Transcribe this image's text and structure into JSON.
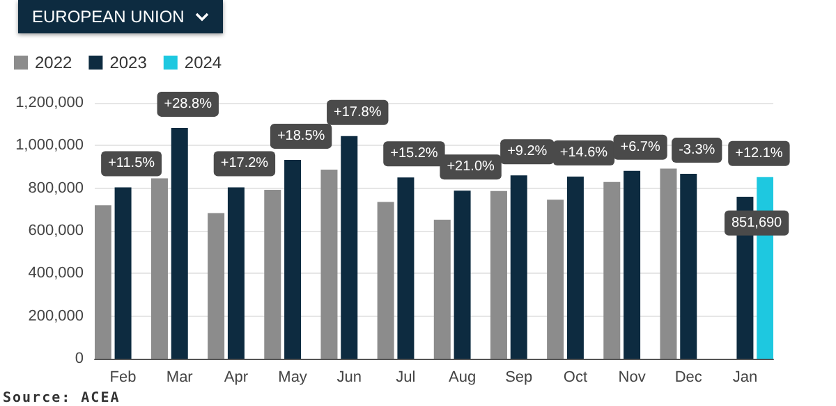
{
  "chart_data": {
    "type": "bar",
    "title": "EUROPEAN UNION",
    "categories": [
      "Feb",
      "Mar",
      "Apr",
      "May",
      "Jun",
      "Jul",
      "Aug",
      "Sep",
      "Oct",
      "Nov",
      "Dec",
      "Jan"
    ],
    "series": [
      {
        "name": "2022",
        "color": "#8c8c8c",
        "values": [
          720000,
          846000,
          683000,
          792000,
          887000,
          735000,
          652000,
          787000,
          746000,
          829000,
          892000,
          null
        ]
      },
      {
        "name": "2023",
        "color": "#0d2b40",
        "values": [
          804000,
          1083000,
          804000,
          933000,
          1044000,
          850000,
          788000,
          860000,
          854000,
          881000,
          867000,
          760000
        ]
      },
      {
        "name": "2024",
        "color": "#1ec8e0",
        "values": [
          null,
          null,
          null,
          null,
          null,
          null,
          null,
          null,
          null,
          null,
          null,
          851690
        ],
        "value_labels": [
          null,
          null,
          null,
          null,
          null,
          null,
          null,
          null,
          null,
          null,
          null,
          "851,690"
        ]
      }
    ],
    "ylim": [
      0,
      1200000
    ],
    "yticks": [
      0,
      {
        "value": 200000,
        "label": "200,000"
      },
      {
        "value": 400000,
        "label": "400,000"
      },
      {
        "value": 600000,
        "label": "600,000"
      },
      {
        "value": 800000,
        "label": "800,000"
      },
      {
        "value": 1000000,
        "label": "1,000,000"
      },
      {
        "value": 1200000,
        "label": "1,200,000"
      }
    ],
    "grid": "y",
    "legend": "top left",
    "annotations": [
      {
        "text": "+11.5%",
        "x": "Feb",
        "y": 804000
      },
      {
        "text": "+28.8%",
        "x": "Mar",
        "y": 1083000
      },
      {
        "text": "+17.2%",
        "x": "Apr",
        "y": 804000
      },
      {
        "text": "+18.5%",
        "x": "May",
        "y": 933000
      },
      {
        "text": "+17.8%",
        "x": "Jun",
        "y": 1044000
      },
      {
        "text": "+15.2%",
        "x": "Jul",
        "y": 850000
      },
      {
        "text": "+21.0%",
        "x": "Aug",
        "y": 788000
      },
      {
        "text": "+9.2%",
        "x": "Sep",
        "y": 860000
      },
      {
        "text": "+14.6%",
        "x": "Oct",
        "y": 854000
      },
      {
        "text": "+6.7%",
        "x": "Nov",
        "y": 881000
      },
      {
        "text": "-3.3%",
        "x": "Dec",
        "y": 867000
      },
      "+12.1%",
      "Source: ACEA"
    ]
  }
}
